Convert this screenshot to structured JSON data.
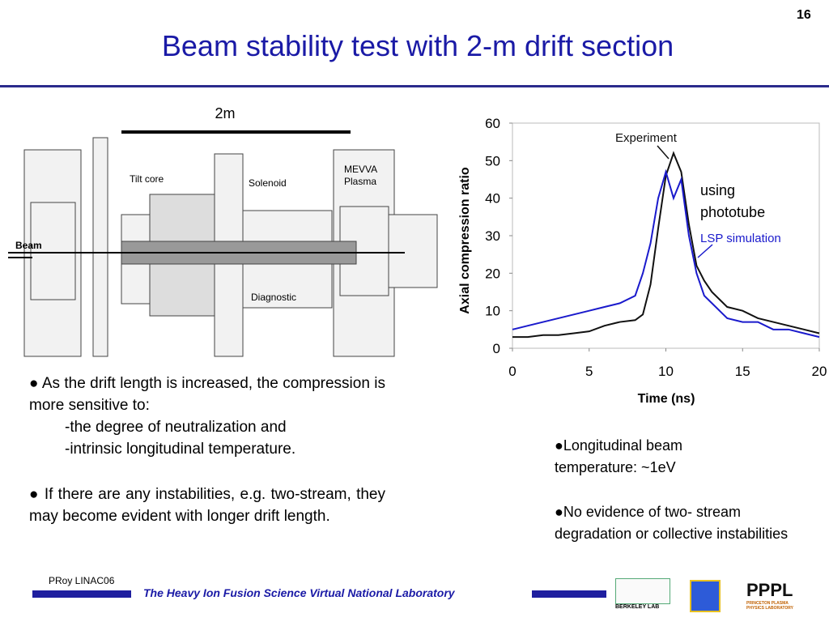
{
  "slide_number": "16",
  "title": "Beam stability test with 2-m drift section",
  "diagram": {
    "scale": "2m",
    "labels": [
      "Tilt core",
      "Solenoid",
      "MEVVA",
      "Plasma",
      "Beam",
      "Diagnostic"
    ]
  },
  "chart_data": {
    "type": "line",
    "xlabel": "Time (ns)",
    "ylabel": "Axial compression ratio",
    "annotations": [
      "Experiment",
      "LSP simulation",
      "using",
      "phototube"
    ],
    "x": [
      0,
      1,
      2,
      3,
      4,
      5,
      6,
      7,
      8,
      8.5,
      9,
      9.5,
      10,
      10.5,
      11,
      11.5,
      12,
      12.5,
      13,
      14,
      15,
      16,
      17,
      18,
      19,
      20
    ],
    "series": [
      {
        "name": "Experiment",
        "color": "#111111",
        "values": [
          3,
          3,
          3.5,
          3.5,
          4,
          4.5,
          6,
          7,
          7.5,
          9,
          17,
          32,
          46,
          52,
          47,
          33,
          22,
          18,
          15,
          11,
          10,
          8,
          7,
          6,
          5,
          4
        ]
      },
      {
        "name": "LSP simulation",
        "color": "#1a1acc",
        "values": [
          5,
          6,
          7,
          8,
          9,
          10,
          11,
          12,
          14,
          20,
          28,
          40,
          47,
          40,
          45,
          30,
          20,
          14,
          12,
          8,
          7,
          7,
          5,
          5,
          4,
          3
        ]
      }
    ],
    "xlim": [
      0,
      20
    ],
    "xticks": [
      0,
      5,
      10,
      15,
      20
    ],
    "ylim": [
      0,
      60
    ],
    "yticks": [
      0,
      10,
      20,
      30,
      40,
      50,
      60
    ]
  },
  "left_text": {
    "bullet1": "● As the drift length is increased, the compression is more sensitive to:",
    "sub1": "-the degree of neutralization and",
    "sub2": "-intrinsic longitudinal temperature.",
    "bullet2": "● If there are any instabilities, e.g. two-stream, they may become evident with longer drift length."
  },
  "right_text": {
    "bullet1": "●Longitudinal beam temperature: ~1eV",
    "bullet2": "●No evidence of two- stream degradation or collective instabilities"
  },
  "footer": {
    "author": "PRoy LINAC06",
    "lab": "The Heavy Ion Fusion Science Virtual National Laboratory",
    "logo1": "BERKELEY LAB",
    "logo2": "PPPL",
    "logo2_sub": "PRINCETON PLASMA PHYSICS LABORATORY"
  }
}
